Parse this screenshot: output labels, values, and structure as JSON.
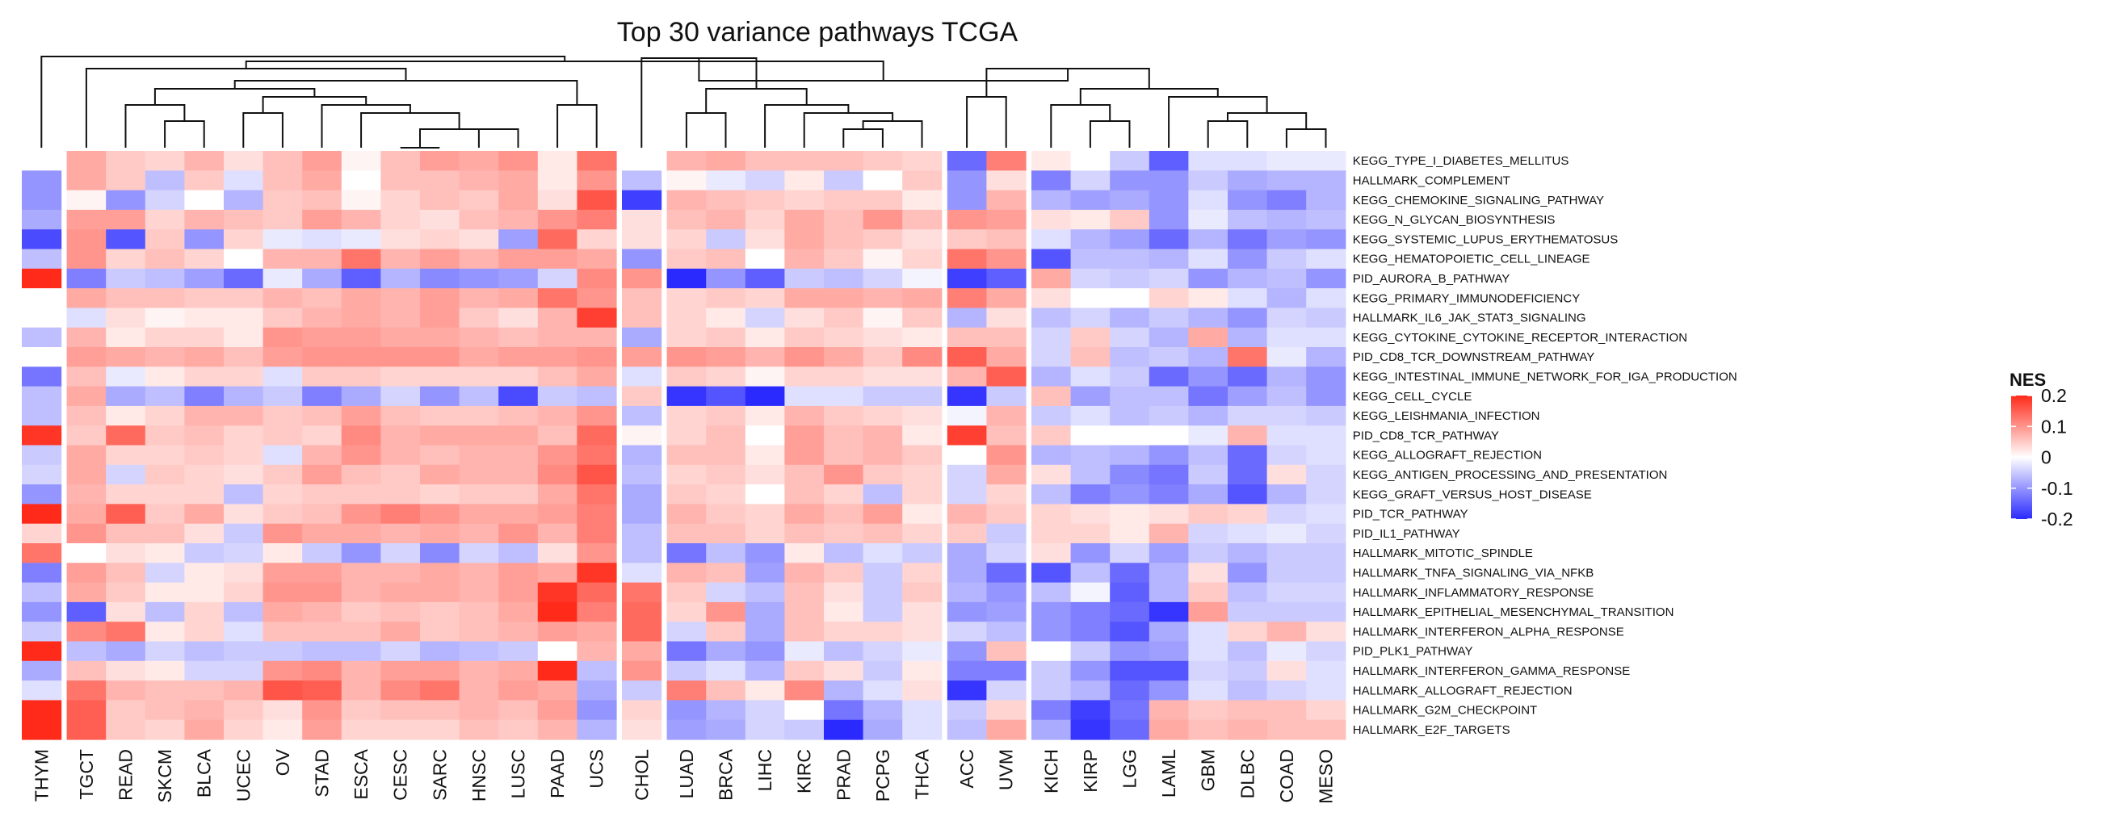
{
  "chart_data": {
    "type": "heatmap",
    "title": "Top 30 variance pathways TCGA",
    "legend": {
      "title": "NES",
      "ticks": [
        0.2,
        0.1,
        0,
        -0.1,
        -0.2
      ],
      "placement": "right"
    },
    "color_scale": {
      "min": -0.2,
      "mid": 0,
      "max": 0.2,
      "low_color": "#2a2aff",
      "mid_color": "#ffffff",
      "high_color": "#ff2a1a"
    },
    "rows": [
      "KEGG_TYPE_I_DIABETES_MELLITUS",
      "HALLMARK_COMPLEMENT",
      "KEGG_CHEMOKINE_SIGNALING_PATHWAY",
      "KEGG_N_GLYCAN_BIOSYNTHESIS",
      "KEGG_SYSTEMIC_LUPUS_ERYTHEMATOSUS",
      "KEGG_HEMATOPOIETIC_CELL_LINEAGE",
      "PID_AURORA_B_PATHWAY",
      "KEGG_PRIMARY_IMMUNODEFICIENCY",
      "HALLMARK_IL6_JAK_STAT3_SIGNALING",
      "KEGG_CYTOKINE_CYTOKINE_RECEPTOR_INTERACTION",
      "PID_CD8_TCR_DOWNSTREAM_PATHWAY",
      "KEGG_INTESTINAL_IMMUNE_NETWORK_FOR_IGA_PRODUCTION",
      "KEGG_CELL_CYCLE",
      "KEGG_LEISHMANIA_INFECTION",
      "PID_CD8_TCR_PATHWAY",
      "KEGG_ALLOGRAFT_REJECTION",
      "KEGG_ANTIGEN_PROCESSING_AND_PRESENTATION",
      "KEGG_GRAFT_VERSUS_HOST_DISEASE",
      "PID_TCR_PATHWAY",
      "PID_IL1_PATHWAY",
      "HALLMARK_MITOTIC_SPINDLE",
      "HALLMARK_TNFA_SIGNALING_VIA_NFKB",
      "HALLMARK_INFLAMMATORY_RESPONSE",
      "HALLMARK_EPITHELIAL_MESENCHYMAL_TRANSITION",
      "HALLMARK_INTERFERON_ALPHA_RESPONSE",
      "PID_PLK1_PATHWAY",
      "HALLMARK_INTERFERON_GAMMA_RESPONSE",
      "HALLMARK_ALLOGRAFT_REJECTION",
      "HALLMARK_G2M_CHECKPOINT",
      "HALLMARK_E2F_TARGETS"
    ],
    "columns": [
      "THYM",
      "TGCT",
      "READ",
      "SKCM",
      "BLCA",
      "UCEC",
      "OV",
      "STAD",
      "ESCA",
      "CESC",
      "SARC",
      "HNSC",
      "LUSC",
      "PAAD",
      "UCS",
      "CHOL",
      "LUAD",
      "BRCA",
      "LIHC",
      "KIRC",
      "PRAD",
      "PCPG",
      "THCA",
      "ACC",
      "UVM",
      "KICH",
      "KIRP",
      "LGG",
      "LAML",
      "GBM",
      "DLBC",
      "COAD",
      "MESO"
    ],
    "column_groups": [
      1,
      14,
      1,
      7,
      2,
      8
    ],
    "values": [
      [
        0.0,
        0.08,
        0.05,
        0.04,
        0.07,
        0.03,
        0.06,
        0.09,
        0.01,
        0.06,
        0.09,
        0.08,
        0.1,
        0.02,
        0.13,
        0.0,
        0.07,
        0.08,
        0.06,
        0.06,
        0.06,
        0.05,
        0.04,
        -0.14,
        0.12,
        0.02,
        0.0,
        -0.05,
        -0.15,
        -0.03,
        -0.03,
        -0.02,
        -0.02
      ],
      [
        -0.1,
        0.08,
        0.05,
        -0.06,
        0.05,
        -0.03,
        0.06,
        0.08,
        0.0,
        0.06,
        0.06,
        0.07,
        0.08,
        0.02,
        0.1,
        -0.06,
        0.01,
        -0.02,
        -0.04,
        0.02,
        -0.05,
        0.0,
        0.05,
        -0.1,
        0.03,
        -0.12,
        -0.04,
        -0.1,
        -0.1,
        -0.05,
        -0.08,
        -0.07,
        -0.07
      ],
      [
        -0.1,
        0.01,
        -0.1,
        -0.04,
        0.0,
        -0.07,
        0.05,
        0.06,
        0.01,
        0.04,
        0.06,
        0.05,
        0.08,
        0.03,
        0.16,
        -0.18,
        0.07,
        0.06,
        0.05,
        0.04,
        0.05,
        0.05,
        0.02,
        -0.1,
        0.07,
        -0.07,
        -0.09,
        -0.08,
        -0.1,
        -0.03,
        -0.1,
        -0.12,
        -0.07
      ],
      [
        -0.08,
        0.09,
        0.09,
        0.04,
        0.07,
        0.06,
        0.05,
        0.09,
        0.07,
        0.04,
        0.03,
        0.06,
        0.07,
        0.1,
        0.12,
        0.03,
        0.06,
        0.07,
        0.04,
        0.08,
        0.06,
        0.1,
        0.06,
        0.1,
        0.09,
        0.03,
        0.02,
        0.05,
        -0.1,
        -0.02,
        -0.06,
        -0.07,
        -0.06
      ],
      [
        -0.17,
        0.1,
        -0.16,
        0.05,
        -0.1,
        0.04,
        -0.02,
        -0.03,
        -0.02,
        0.03,
        0.04,
        0.03,
        -0.09,
        0.14,
        0.04,
        0.03,
        0.04,
        -0.05,
        0.03,
        0.08,
        0.06,
        0.05,
        0.03,
        0.05,
        0.06,
        -0.03,
        -0.07,
        -0.09,
        -0.14,
        -0.07,
        -0.13,
        -0.09,
        -0.1
      ],
      [
        -0.06,
        0.1,
        0.04,
        0.06,
        0.04,
        0.0,
        0.07,
        0.07,
        0.13,
        0.07,
        0.09,
        0.07,
        0.09,
        0.09,
        0.08,
        -0.1,
        0.05,
        0.06,
        0.0,
        0.07,
        0.05,
        0.01,
        0.04,
        0.13,
        0.1,
        -0.16,
        -0.06,
        -0.06,
        -0.07,
        -0.03,
        -0.1,
        -0.05,
        -0.03
      ],
      [
        0.2,
        -0.12,
        -0.05,
        -0.06,
        -0.09,
        -0.14,
        -0.02,
        -0.08,
        -0.15,
        -0.07,
        -0.11,
        -0.1,
        -0.09,
        -0.04,
        0.11,
        0.1,
        -0.2,
        -0.1,
        -0.15,
        -0.05,
        -0.06,
        -0.04,
        -0.01,
        -0.18,
        -0.15,
        0.08,
        -0.04,
        -0.05,
        -0.04,
        -0.1,
        -0.07,
        -0.06,
        -0.1
      ],
      [
        0.0,
        0.08,
        0.06,
        0.06,
        0.05,
        0.05,
        0.07,
        0.06,
        0.08,
        0.07,
        0.09,
        0.07,
        0.08,
        0.13,
        0.1,
        0.06,
        0.04,
        0.05,
        0.04,
        0.08,
        0.08,
        0.07,
        0.08,
        0.12,
        0.08,
        0.03,
        0.0,
        0.0,
        0.04,
        0.02,
        -0.03,
        -0.07,
        -0.03
      ],
      [
        0.0,
        -0.03,
        0.03,
        0.01,
        0.02,
        0.02,
        0.05,
        0.07,
        0.08,
        0.07,
        0.09,
        0.05,
        0.03,
        0.07,
        0.18,
        0.06,
        0.04,
        0.02,
        -0.04,
        0.03,
        0.05,
        0.01,
        0.05,
        -0.07,
        0.03,
        -0.06,
        -0.04,
        -0.07,
        -0.05,
        -0.07,
        -0.1,
        -0.04,
        -0.05
      ],
      [
        -0.06,
        0.07,
        0.02,
        0.04,
        0.04,
        0.02,
        0.1,
        0.09,
        0.09,
        0.08,
        0.08,
        0.07,
        0.06,
        0.07,
        0.07,
        -0.08,
        0.04,
        0.05,
        0.02,
        0.05,
        0.04,
        0.03,
        0.02,
        0.06,
        0.06,
        -0.04,
        0.05,
        -0.04,
        -0.07,
        0.08,
        -0.07,
        -0.03,
        -0.03
      ],
      [
        0.0,
        0.09,
        0.08,
        0.07,
        0.08,
        0.06,
        0.09,
        0.1,
        0.1,
        0.1,
        0.1,
        0.08,
        0.09,
        0.09,
        0.1,
        0.09,
        0.1,
        0.09,
        0.07,
        0.1,
        0.08,
        0.05,
        0.11,
        0.15,
        0.08,
        -0.04,
        0.06,
        -0.06,
        -0.05,
        -0.07,
        0.13,
        -0.02,
        -0.07
      ],
      [
        -0.13,
        0.06,
        -0.02,
        0.02,
        0.04,
        0.04,
        -0.03,
        0.05,
        0.05,
        0.04,
        0.04,
        0.04,
        0.04,
        0.06,
        0.08,
        -0.03,
        0.05,
        0.04,
        0.01,
        0.04,
        0.04,
        0.03,
        0.03,
        0.07,
        0.15,
        -0.07,
        -0.03,
        -0.05,
        -0.14,
        -0.1,
        -0.14,
        -0.07,
        -0.1
      ],
      [
        -0.06,
        0.08,
        -0.08,
        -0.06,
        -0.12,
        -0.07,
        -0.05,
        -0.12,
        -0.08,
        -0.04,
        -0.1,
        -0.06,
        -0.17,
        -0.05,
        -0.06,
        0.05,
        -0.19,
        -0.16,
        -0.2,
        -0.03,
        -0.03,
        -0.05,
        -0.05,
        -0.19,
        -0.05,
        0.06,
        -0.09,
        -0.06,
        -0.06,
        -0.13,
        -0.09,
        -0.06,
        -0.1
      ],
      [
        -0.06,
        0.06,
        0.02,
        0.04,
        0.07,
        0.07,
        0.05,
        0.06,
        0.09,
        0.06,
        0.05,
        0.05,
        0.06,
        0.07,
        0.1,
        -0.06,
        0.04,
        0.05,
        0.02,
        0.07,
        0.05,
        0.04,
        0.03,
        -0.01,
        0.07,
        -0.05,
        -0.03,
        -0.06,
        -0.05,
        -0.07,
        -0.04,
        -0.04,
        -0.05
      ],
      [
        0.19,
        0.05,
        0.14,
        0.05,
        0.06,
        0.04,
        0.05,
        0.04,
        0.11,
        0.07,
        0.08,
        0.08,
        0.08,
        0.06,
        0.14,
        0.01,
        0.04,
        0.06,
        0.0,
        0.09,
        0.06,
        0.07,
        0.02,
        0.18,
        0.06,
        0.05,
        0.0,
        0.0,
        0.0,
        -0.02,
        0.07,
        -0.03,
        -0.03
      ],
      [
        -0.05,
        0.08,
        0.04,
        0.04,
        0.05,
        0.04,
        -0.03,
        0.07,
        0.1,
        0.07,
        0.06,
        0.07,
        0.07,
        0.1,
        0.13,
        -0.07,
        0.06,
        0.06,
        0.02,
        0.09,
        0.06,
        0.07,
        0.05,
        0.0,
        0.1,
        -0.07,
        -0.06,
        -0.07,
        -0.1,
        -0.06,
        -0.14,
        -0.04,
        -0.03
      ],
      [
        -0.04,
        0.08,
        -0.04,
        0.05,
        0.04,
        0.03,
        0.05,
        0.09,
        0.06,
        0.05,
        0.08,
        0.07,
        0.07,
        0.11,
        0.16,
        -0.06,
        0.04,
        0.05,
        0.03,
        0.06,
        0.1,
        0.05,
        0.04,
        -0.04,
        0.08,
        0.03,
        -0.06,
        -0.11,
        -0.13,
        -0.05,
        -0.14,
        0.03,
        -0.04
      ],
      [
        -0.1,
        0.07,
        0.04,
        0.04,
        0.04,
        -0.06,
        0.04,
        0.05,
        0.05,
        0.05,
        0.04,
        0.05,
        0.05,
        0.08,
        0.13,
        -0.08,
        0.05,
        0.04,
        0.0,
        0.06,
        0.04,
        -0.06,
        0.04,
        -0.04,
        0.04,
        -0.06,
        -0.12,
        -0.1,
        -0.12,
        -0.08,
        -0.16,
        -0.07,
        -0.04
      ],
      [
        0.2,
        0.08,
        0.15,
        0.05,
        0.08,
        0.03,
        0.05,
        0.06,
        0.1,
        0.12,
        0.1,
        0.08,
        0.08,
        0.09,
        0.12,
        -0.08,
        0.07,
        0.05,
        0.04,
        0.08,
        0.06,
        0.09,
        0.02,
        0.07,
        0.05,
        0.04,
        0.03,
        0.02,
        0.03,
        0.05,
        0.04,
        -0.04,
        -0.03
      ],
      [
        0.04,
        0.1,
        0.06,
        0.06,
        0.03,
        -0.05,
        0.1,
        0.08,
        0.08,
        0.07,
        0.08,
        0.07,
        0.1,
        0.07,
        0.12,
        -0.06,
        0.06,
        0.06,
        0.04,
        0.06,
        0.05,
        0.06,
        0.04,
        0.05,
        -0.05,
        0.04,
        0.04,
        0.02,
        0.07,
        -0.04,
        -0.03,
        -0.02,
        -0.04
      ],
      [
        0.13,
        0.0,
        0.03,
        0.02,
        -0.05,
        -0.04,
        0.02,
        -0.05,
        -0.1,
        -0.04,
        -0.11,
        -0.04,
        -0.06,
        0.03,
        0.1,
        -0.06,
        -0.13,
        -0.06,
        -0.1,
        0.02,
        -0.06,
        -0.03,
        -0.05,
        -0.08,
        -0.04,
        0.03,
        -0.1,
        -0.04,
        -0.09,
        -0.05,
        -0.07,
        -0.05,
        -0.05
      ],
      [
        -0.12,
        0.09,
        0.06,
        -0.04,
        0.02,
        0.03,
        0.09,
        0.09,
        0.07,
        0.07,
        0.08,
        0.07,
        0.09,
        0.08,
        0.19,
        -0.03,
        0.07,
        0.06,
        -0.09,
        0.07,
        0.05,
        -0.05,
        0.04,
        -0.08,
        -0.14,
        -0.16,
        -0.06,
        -0.14,
        -0.07,
        0.03,
        -0.1,
        -0.05,
        -0.05
      ],
      [
        -0.06,
        0.08,
        0.05,
        0.02,
        0.02,
        0.04,
        0.1,
        0.1,
        0.07,
        0.08,
        0.08,
        0.07,
        0.09,
        0.19,
        0.14,
        0.13,
        0.05,
        -0.04,
        -0.06,
        0.06,
        0.03,
        -0.05,
        0.05,
        -0.07,
        -0.1,
        -0.06,
        -0.01,
        -0.15,
        -0.07,
        0.05,
        -0.06,
        -0.04,
        -0.04
      ],
      [
        -0.1,
        -0.15,
        0.03,
        -0.06,
        0.04,
        -0.06,
        0.08,
        0.07,
        0.05,
        0.06,
        0.05,
        0.06,
        0.08,
        0.2,
        0.12,
        0.14,
        0.04,
        0.1,
        -0.08,
        0.06,
        0.02,
        -0.05,
        0.03,
        -0.1,
        -0.09,
        -0.1,
        -0.12,
        -0.14,
        -0.19,
        0.09,
        -0.05,
        -0.05,
        -0.05
      ],
      [
        -0.05,
        0.11,
        0.13,
        0.02,
        0.04,
        -0.03,
        0.06,
        0.06,
        0.06,
        0.08,
        0.05,
        0.06,
        0.07,
        0.09,
        0.08,
        0.14,
        -0.04,
        0.05,
        -0.08,
        0.06,
        0.04,
        0.04,
        0.03,
        -0.04,
        -0.06,
        -0.1,
        -0.12,
        -0.16,
        -0.08,
        -0.03,
        0.04,
        0.07,
        0.03
      ],
      [
        0.2,
        -0.06,
        -0.08,
        -0.04,
        -0.06,
        -0.05,
        -0.05,
        -0.06,
        -0.06,
        -0.04,
        -0.07,
        -0.06,
        -0.05,
        0.0,
        0.07,
        0.08,
        -0.13,
        -0.08,
        -0.1,
        -0.02,
        -0.06,
        -0.04,
        -0.02,
        -0.1,
        0.06,
        0.0,
        -0.05,
        -0.1,
        -0.09,
        -0.03,
        -0.06,
        -0.02,
        -0.04
      ],
      [
        -0.08,
        0.06,
        0.03,
        0.02,
        -0.04,
        -0.04,
        0.1,
        0.11,
        0.07,
        0.09,
        0.09,
        0.07,
        0.08,
        0.2,
        -0.06,
        0.1,
        -0.05,
        -0.03,
        -0.07,
        0.05,
        0.03,
        -0.05,
        0.02,
        -0.12,
        -0.12,
        -0.05,
        -0.1,
        -0.16,
        -0.16,
        -0.04,
        -0.05,
        0.03,
        -0.03
      ],
      [
        -0.03,
        0.13,
        0.07,
        0.06,
        0.06,
        0.07,
        0.16,
        0.15,
        0.07,
        0.11,
        0.13,
        0.07,
        0.09,
        0.08,
        -0.08,
        -0.05,
        0.12,
        0.06,
        0.02,
        0.11,
        -0.07,
        -0.03,
        0.03,
        -0.19,
        -0.04,
        -0.05,
        -0.07,
        -0.14,
        -0.1,
        -0.03,
        -0.06,
        -0.04,
        -0.03
      ],
      [
        0.2,
        0.15,
        0.05,
        0.06,
        0.07,
        0.05,
        0.03,
        0.1,
        0.05,
        0.06,
        0.06,
        0.07,
        0.06,
        0.09,
        -0.1,
        0.04,
        -0.1,
        -0.07,
        -0.04,
        0.0,
        -0.13,
        -0.07,
        -0.03,
        -0.05,
        0.04,
        -0.12,
        -0.18,
        -0.13,
        0.07,
        0.05,
        0.06,
        0.06,
        0.04
      ],
      [
        0.2,
        0.15,
        0.05,
        0.04,
        0.08,
        0.04,
        0.02,
        0.09,
        0.04,
        0.04,
        0.04,
        0.06,
        0.05,
        0.07,
        -0.07,
        0.03,
        -0.09,
        -0.08,
        -0.04,
        -0.05,
        -0.2,
        -0.08,
        -0.03,
        -0.06,
        0.08,
        -0.08,
        -0.19,
        -0.14,
        0.08,
        0.06,
        0.07,
        0.06,
        0.06
      ]
    ]
  }
}
